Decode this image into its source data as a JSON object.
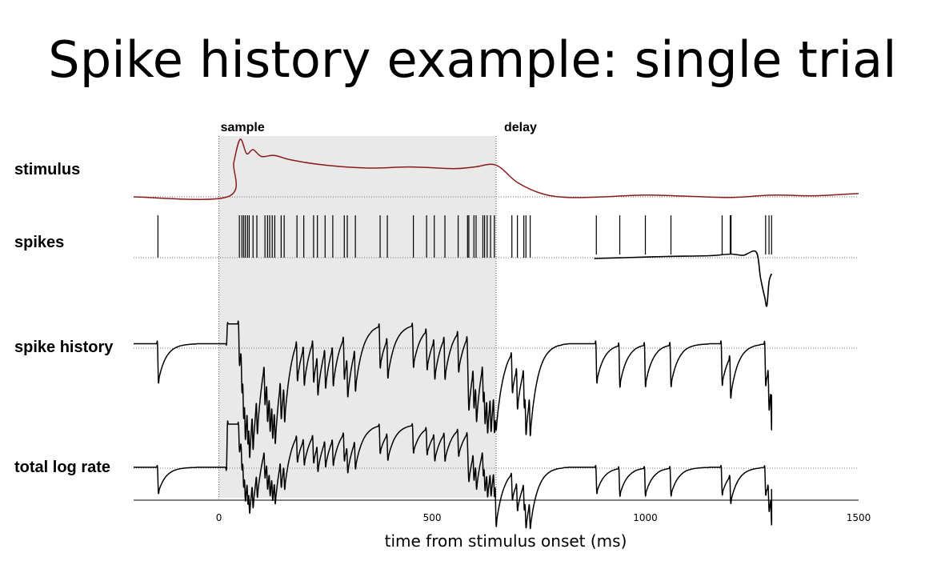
{
  "title": "Spike history example: single trial",
  "chart_data": {
    "type": "line",
    "xlabel": "time from stimulus onset (ms)",
    "xlim": [
      -200,
      1500
    ],
    "xticks": [
      "0",
      "500",
      "1000",
      "1500"
    ],
    "epochs": [
      {
        "label": "sample",
        "start": 0,
        "end": 650
      },
      {
        "label": "delay",
        "start": 650,
        "end": 1500
      }
    ],
    "colors": {
      "stimulus": "#8b1a1a",
      "trace": "#000000",
      "shade": "#e9e9e9"
    },
    "rows": [
      {
        "label": "stimulus"
      },
      {
        "label": "spikes"
      },
      {
        "label": "spike history"
      },
      {
        "label": "total log rate"
      }
    ],
    "stimulus": {
      "x": [
        -200,
        20,
        35,
        50,
        65,
        80,
        100,
        130,
        170,
        250,
        350,
        450,
        550,
        600,
        650,
        700,
        760,
        820,
        900,
        1000,
        1100,
        1200,
        1300,
        1400,
        1500
      ],
      "y": [
        0,
        0,
        0.6,
        1.0,
        0.75,
        0.82,
        0.7,
        0.72,
        0.64,
        0.55,
        0.5,
        0.52,
        0.49,
        0.52,
        0.55,
        0.25,
        0.05,
        -0.01,
        0.0,
        0.03,
        0.01,
        -0.01,
        0.03,
        0.02,
        0.06
      ]
    },
    "spikes": [
      -143,
      48,
      54,
      58,
      62,
      67,
      71,
      80,
      89,
      108,
      114,
      119,
      125,
      131,
      146,
      153,
      183,
      199,
      222,
      231,
      249,
      267,
      294,
      301,
      320,
      378,
      395,
      456,
      487,
      505,
      530,
      561,
      583,
      586,
      598,
      603,
      619,
      623,
      629,
      637,
      646,
      687,
      700,
      715,
      720,
      730,
      885,
      940,
      1000,
      1060,
      1180,
      1200,
      1282,
      1290,
      1296
    ],
    "spike_history_tail": {
      "x": [
        880,
        950,
        1050,
        1150,
        1200,
        1230,
        1260,
        1270,
        1280,
        1285,
        1290,
        1296
      ],
      "y": [
        -0.02,
        0.0,
        0.03,
        0.05,
        0.09,
        0.06,
        0.14,
        -0.5,
        -1.0,
        -1.2,
        -0.6,
        -0.4
      ]
    },
    "spike_history": {
      "baseline": 0.0,
      "end_x": 1296,
      "start_y": -0.3
    },
    "total_log_rate": {
      "baseline": 0.0,
      "sample_level": 1.1,
      "delay_level": 0.0,
      "end_x": 1296
    }
  }
}
